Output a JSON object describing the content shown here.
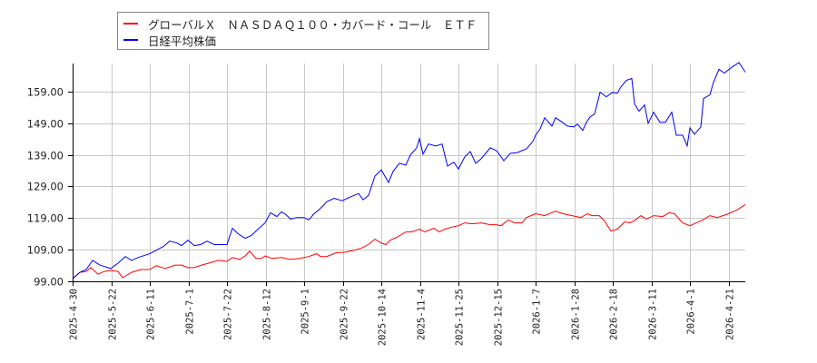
{
  "chart_data": {
    "type": "line",
    "title": "",
    "xlabel": "",
    "ylabel": "",
    "ylim": [
      99,
      170
    ],
    "yticks": [
      99.0,
      109.0,
      119.0,
      129.0,
      139.0,
      149.0,
      159.0
    ],
    "ytick_labels": [
      "99.00",
      "109.00",
      "119.00",
      "129.00",
      "139.00",
      "149.00",
      "159.00"
    ],
    "xtick_labels": [
      "2025-4-30",
      "2025-5-22",
      "2025-6-11",
      "2025-7-1",
      "2025-7-22",
      "2025-8-12",
      "2025-9-1",
      "2025-9-22",
      "2025-10-14",
      "2025-11-4",
      "2025-11-25",
      "2025-12-15",
      "2026-1-7",
      "2026-1-28",
      "2026-2-18",
      "2026-3-11",
      "2026-4-1",
      "2026-4-21"
    ],
    "grid": true,
    "legend_position": "top-left",
    "series": [
      {
        "name": "グローバルＸ　ＮＡＳＤＡＱ１００・カバード・コール　ＥＴＦ",
        "color": "#ff0000",
        "points": [
          [
            0,
            99.7
          ],
          [
            8,
            101.7
          ],
          [
            15,
            102.0
          ],
          [
            20,
            103.2
          ],
          [
            28,
            101.1
          ],
          [
            35,
            102.0
          ],
          [
            42,
            102.3
          ],
          [
            50,
            102.0
          ],
          [
            55,
            100.0
          ],
          [
            65,
            101.7
          ],
          [
            75,
            102.6
          ],
          [
            85,
            102.6
          ],
          [
            92,
            103.8
          ],
          [
            102,
            102.9
          ],
          [
            113,
            104.0
          ],
          [
            120,
            104.0
          ],
          [
            127,
            103.2
          ],
          [
            134,
            103.2
          ],
          [
            142,
            104.0
          ],
          [
            150,
            104.6
          ],
          [
            160,
            105.5
          ],
          [
            170,
            105.2
          ],
          [
            176,
            106.4
          ],
          [
            184,
            105.8
          ],
          [
            190,
            106.9
          ],
          [
            195,
            108.4
          ],
          [
            202,
            106.1
          ],
          [
            208,
            106.1
          ],
          [
            212,
            106.9
          ],
          [
            220,
            106.1
          ],
          [
            230,
            106.4
          ],
          [
            240,
            105.8
          ],
          [
            250,
            106.1
          ],
          [
            260,
            106.7
          ],
          [
            269,
            107.6
          ],
          [
            273,
            106.7
          ],
          [
            280,
            106.7
          ],
          [
            290,
            107.9
          ],
          [
            300,
            108.1
          ],
          [
            310,
            108.7
          ],
          [
            320,
            109.6
          ],
          [
            327,
            110.8
          ],
          [
            333,
            112.2
          ],
          [
            340,
            111.0
          ],
          [
            345,
            110.5
          ],
          [
            350,
            111.9
          ],
          [
            357,
            112.8
          ],
          [
            367,
            114.5
          ],
          [
            373,
            114.5
          ],
          [
            382,
            115.4
          ],
          [
            388,
            114.5
          ],
          [
            398,
            115.7
          ],
          [
            404,
            114.5
          ],
          [
            410,
            115.4
          ],
          [
            420,
            116.2
          ],
          [
            425,
            116.5
          ],
          [
            432,
            117.4
          ],
          [
            440,
            117.1
          ],
          [
            450,
            117.4
          ],
          [
            460,
            116.8
          ],
          [
            467,
            116.8
          ],
          [
            472,
            116.5
          ],
          [
            480,
            118.3
          ],
          [
            487,
            117.4
          ],
          [
            495,
            117.4
          ],
          [
            500,
            119.1
          ],
          [
            510,
            120.3
          ],
          [
            520,
            119.7
          ],
          [
            532,
            121.1
          ],
          [
            540,
            120.3
          ],
          [
            550,
            119.7
          ],
          [
            560,
            119.1
          ],
          [
            567,
            120.3
          ],
          [
            572,
            119.7
          ],
          [
            580,
            119.7
          ],
          [
            586,
            118.0
          ],
          [
            593,
            114.8
          ],
          [
            600,
            115.4
          ],
          [
            608,
            117.7
          ],
          [
            614,
            117.4
          ],
          [
            620,
            118.3
          ],
          [
            626,
            119.7
          ],
          [
            632,
            118.6
          ],
          [
            640,
            119.7
          ],
          [
            650,
            119.4
          ],
          [
            657,
            120.6
          ],
          [
            663,
            120.3
          ],
          [
            672,
            117.4
          ],
          [
            680,
            116.5
          ],
          [
            687,
            117.4
          ],
          [
            694,
            118.3
          ],
          [
            702,
            119.7
          ],
          [
            710,
            119.1
          ],
          [
            720,
            120.0
          ],
          [
            732,
            121.5
          ],
          [
            741,
            123.2
          ]
        ]
      },
      {
        "name": "日経平均株価",
        "color": "#0000ff",
        "points": [
          [
            0,
            99.7
          ],
          [
            8,
            101.7
          ],
          [
            15,
            102.6
          ],
          [
            22,
            105.5
          ],
          [
            30,
            104.0
          ],
          [
            42,
            102.9
          ],
          [
            50,
            104.6
          ],
          [
            58,
            106.7
          ],
          [
            65,
            105.5
          ],
          [
            72,
            106.4
          ],
          [
            85,
            107.6
          ],
          [
            92,
            108.7
          ],
          [
            100,
            109.9
          ],
          [
            107,
            111.6
          ],
          [
            115,
            111.0
          ],
          [
            120,
            110.2
          ],
          [
            127,
            111.9
          ],
          [
            134,
            110.2
          ],
          [
            141,
            110.5
          ],
          [
            148,
            111.6
          ],
          [
            156,
            110.5
          ],
          [
            165,
            110.5
          ],
          [
            170,
            110.5
          ],
          [
            176,
            115.7
          ],
          [
            182,
            114.0
          ],
          [
            190,
            112.5
          ],
          [
            197,
            113.4
          ],
          [
            202,
            114.8
          ],
          [
            212,
            117.4
          ],
          [
            218,
            120.6
          ],
          [
            225,
            119.4
          ],
          [
            230,
            120.9
          ],
          [
            235,
            120.0
          ],
          [
            240,
            118.6
          ],
          [
            247,
            119.1
          ],
          [
            255,
            119.1
          ],
          [
            260,
            118.3
          ],
          [
            266,
            120.3
          ],
          [
            273,
            122.0
          ],
          [
            280,
            124.1
          ],
          [
            288,
            125.2
          ],
          [
            297,
            124.4
          ],
          [
            305,
            125.5
          ],
          [
            315,
            126.7
          ],
          [
            320,
            124.7
          ],
          [
            326,
            126.1
          ],
          [
            333,
            132.2
          ],
          [
            340,
            134.2
          ],
          [
            348,
            130.2
          ],
          [
            353,
            133.7
          ],
          [
            360,
            136.3
          ],
          [
            367,
            135.7
          ],
          [
            372,
            138.9
          ],
          [
            379,
            141.2
          ],
          [
            382,
            144.1
          ],
          [
            386,
            139.2
          ],
          [
            392,
            142.4
          ],
          [
            400,
            141.8
          ],
          [
            407,
            142.4
          ],
          [
            413,
            135.4
          ],
          [
            420,
            136.6
          ],
          [
            425,
            134.5
          ],
          [
            432,
            138.3
          ],
          [
            438,
            140.0
          ],
          [
            444,
            136.3
          ],
          [
            450,
            137.7
          ],
          [
            460,
            141.2
          ],
          [
            467,
            140.3
          ],
          [
            475,
            137.1
          ],
          [
            482,
            139.4
          ],
          [
            490,
            139.7
          ],
          [
            500,
            140.9
          ],
          [
            507,
            143.2
          ],
          [
            510,
            145.2
          ],
          [
            515,
            147.2
          ],
          [
            520,
            150.7
          ],
          [
            528,
            148.1
          ],
          [
            532,
            150.7
          ],
          [
            538,
            149.6
          ],
          [
            545,
            148.1
          ],
          [
            552,
            147.8
          ],
          [
            556,
            148.7
          ],
          [
            562,
            146.7
          ],
          [
            566,
            149.3
          ],
          [
            570,
            151.0
          ],
          [
            575,
            151.9
          ],
          [
            581,
            158.8
          ],
          [
            588,
            157.4
          ],
          [
            595,
            158.8
          ],
          [
            600,
            158.5
          ],
          [
            604,
            160.5
          ],
          [
            610,
            162.6
          ],
          [
            616,
            163.2
          ],
          [
            619,
            155.1
          ],
          [
            624,
            152.8
          ],
          [
            630,
            154.8
          ],
          [
            634,
            149.0
          ],
          [
            640,
            152.5
          ],
          [
            647,
            149.3
          ],
          [
            653,
            149.3
          ],
          [
            660,
            152.5
          ],
          [
            665,
            145.2
          ],
          [
            672,
            145.2
          ],
          [
            677,
            141.8
          ],
          [
            680,
            147.5
          ],
          [
            685,
            145.5
          ],
          [
            692,
            147.8
          ],
          [
            695,
            156.8
          ],
          [
            702,
            158.0
          ],
          [
            706,
            162.0
          ],
          [
            712,
            166.1
          ],
          [
            718,
            164.9
          ],
          [
            726,
            166.7
          ],
          [
            734,
            168.2
          ],
          [
            741,
            165.2
          ]
        ]
      }
    ]
  },
  "legend": {
    "items": [
      {
        "label": "グローバルＸ　ＮＡＳＤＡＱ１００・カバード・コール　ＥＴＦ",
        "color": "#ff0000"
      },
      {
        "label": "日経平均株価",
        "color": "#0000ff"
      }
    ]
  }
}
